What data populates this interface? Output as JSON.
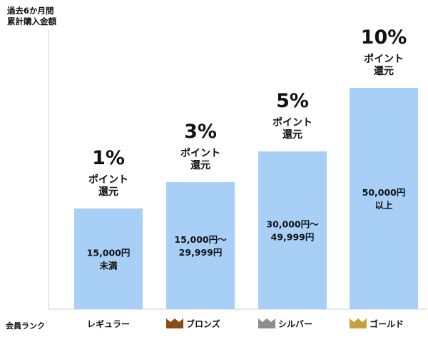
{
  "chart_data": {
    "type": "bar",
    "ylabel": "過去6か月間\n累計購入金額",
    "xlabel": "会員ランク",
    "categories": [
      "レギュラー",
      "ブロンズ",
      "シルバー",
      "ゴールド"
    ],
    "rank_icons": [
      "",
      "crown-icon",
      "crown-icon",
      "crown-icon"
    ],
    "icon_colors": [
      "",
      "#8a4b14",
      "#8c8c8c",
      "#c4a23b"
    ],
    "values": [
      1,
      3,
      5,
      10
    ],
    "value_labels": [
      "1%",
      "3%",
      "5%",
      "10%"
    ],
    "sub_labels": [
      "ポイント\n還元",
      "ポイント\n還元",
      "ポイント\n還元",
      "ポイント\n還元"
    ],
    "bar_labels": [
      "15,000円\n未満",
      "15,000円～\n29,999円",
      "30,000円～\n49,999円",
      "50,000円\n以上"
    ],
    "ylim": [
      0,
      11
    ],
    "bar_color": "#a8d0f7"
  }
}
